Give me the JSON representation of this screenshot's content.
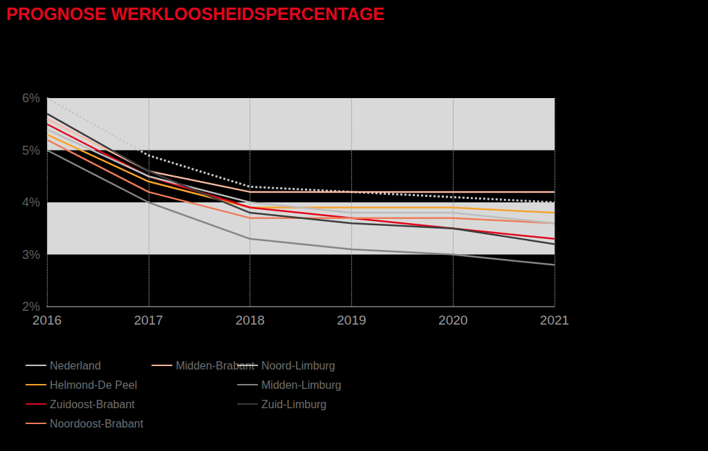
{
  "chart_data": {
    "type": "line",
    "title": "PROGNOSE WERKLOOSHEIDSPERCENTAGE",
    "categories": [
      "2016",
      "2017",
      "2018",
      "2019",
      "2020",
      "2021"
    ],
    "ylim": [
      2,
      6
    ],
    "yticks": [
      {
        "value": 2,
        "label": "2%"
      },
      {
        "value": 3,
        "label": "3%"
      },
      {
        "value": 4,
        "label": "4%"
      },
      {
        "value": 5,
        "label": "5%"
      },
      {
        "value": 6,
        "label": "6%"
      }
    ],
    "grid": true,
    "legend": "bottom",
    "series": [
      {
        "name": "Nederland",
        "color": "#c8c8c8",
        "line_style": "dotted",
        "values": [
          6.0,
          4.9,
          4.3,
          4.2,
          4.1,
          4.0
        ]
      },
      {
        "name": "Helmond-De Peel",
        "color": "#f5a32a",
        "line_style": "solid",
        "values": [
          5.3,
          4.4,
          3.9,
          3.9,
          3.9,
          3.8
        ]
      },
      {
        "name": "Zuidoost-Brabant",
        "color": "#e3061b",
        "line_style": "solid",
        "values": [
          5.5,
          4.5,
          3.9,
          3.7,
          3.5,
          3.3
        ]
      },
      {
        "name": "Noordoost-Brabant",
        "color": "#ef7c5a",
        "line_style": "solid",
        "values": [
          5.2,
          4.2,
          3.7,
          3.7,
          3.7,
          3.6
        ]
      },
      {
        "name": "Midden-Brabant",
        "color": "#f6b9a0",
        "line_style": "solid",
        "values": [
          5.6,
          4.6,
          4.2,
          4.2,
          4.2,
          4.2
        ]
      },
      {
        "name": "Noord-Limburg",
        "color": "#bdbdbd",
        "line_style": "solid",
        "values": [
          5.4,
          4.5,
          4.0,
          3.8,
          3.8,
          3.6
        ]
      },
      {
        "name": "Midden-Limburg",
        "color": "#858585",
        "line_style": "solid",
        "values": [
          5.0,
          4.0,
          3.3,
          3.1,
          3.0,
          2.8
        ]
      },
      {
        "name": "Zuid-Limburg",
        "color": "#3c3c3c",
        "line_style": "solid",
        "values": [
          5.7,
          4.6,
          3.8,
          3.6,
          3.5,
          3.2
        ]
      }
    ]
  }
}
